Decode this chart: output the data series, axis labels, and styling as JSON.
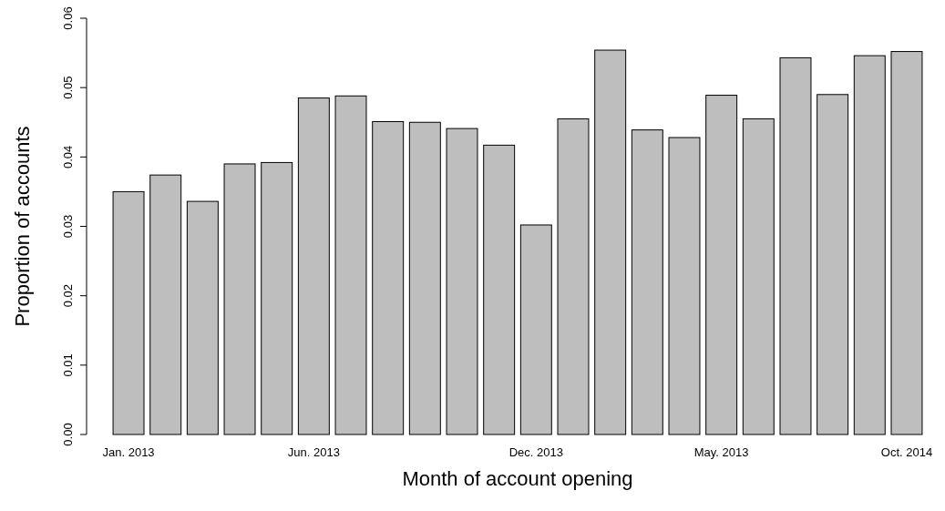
{
  "chart_data": {
    "type": "bar",
    "xlabel": "Month of account opening",
    "ylabel": "Proportion of accounts",
    "categories": [
      "Jan. 2013",
      null,
      null,
      null,
      null,
      "Jun. 2013",
      null,
      null,
      null,
      null,
      null,
      "Dec. 2013",
      null,
      null,
      null,
      null,
      "May. 2013",
      null,
      null,
      null,
      null,
      "Oct. 2014"
    ],
    "values": [
      0.035,
      0.0374,
      0.0336,
      0.039,
      0.0392,
      0.0485,
      0.0488,
      0.0451,
      0.045,
      0.0441,
      0.0417,
      0.0302,
      0.0455,
      0.0554,
      0.0439,
      0.0428,
      0.0489,
      0.0455,
      0.0543,
      0.049,
      0.0546,
      0.0552
    ],
    "color": "#bebebe",
    "ylim": [
      0,
      0.06
    ],
    "yticks": [
      {
        "value": 0,
        "label": "0.00"
      },
      0.01,
      0.02,
      0.03,
      0.04,
      0.05,
      0.06
    ]
  }
}
